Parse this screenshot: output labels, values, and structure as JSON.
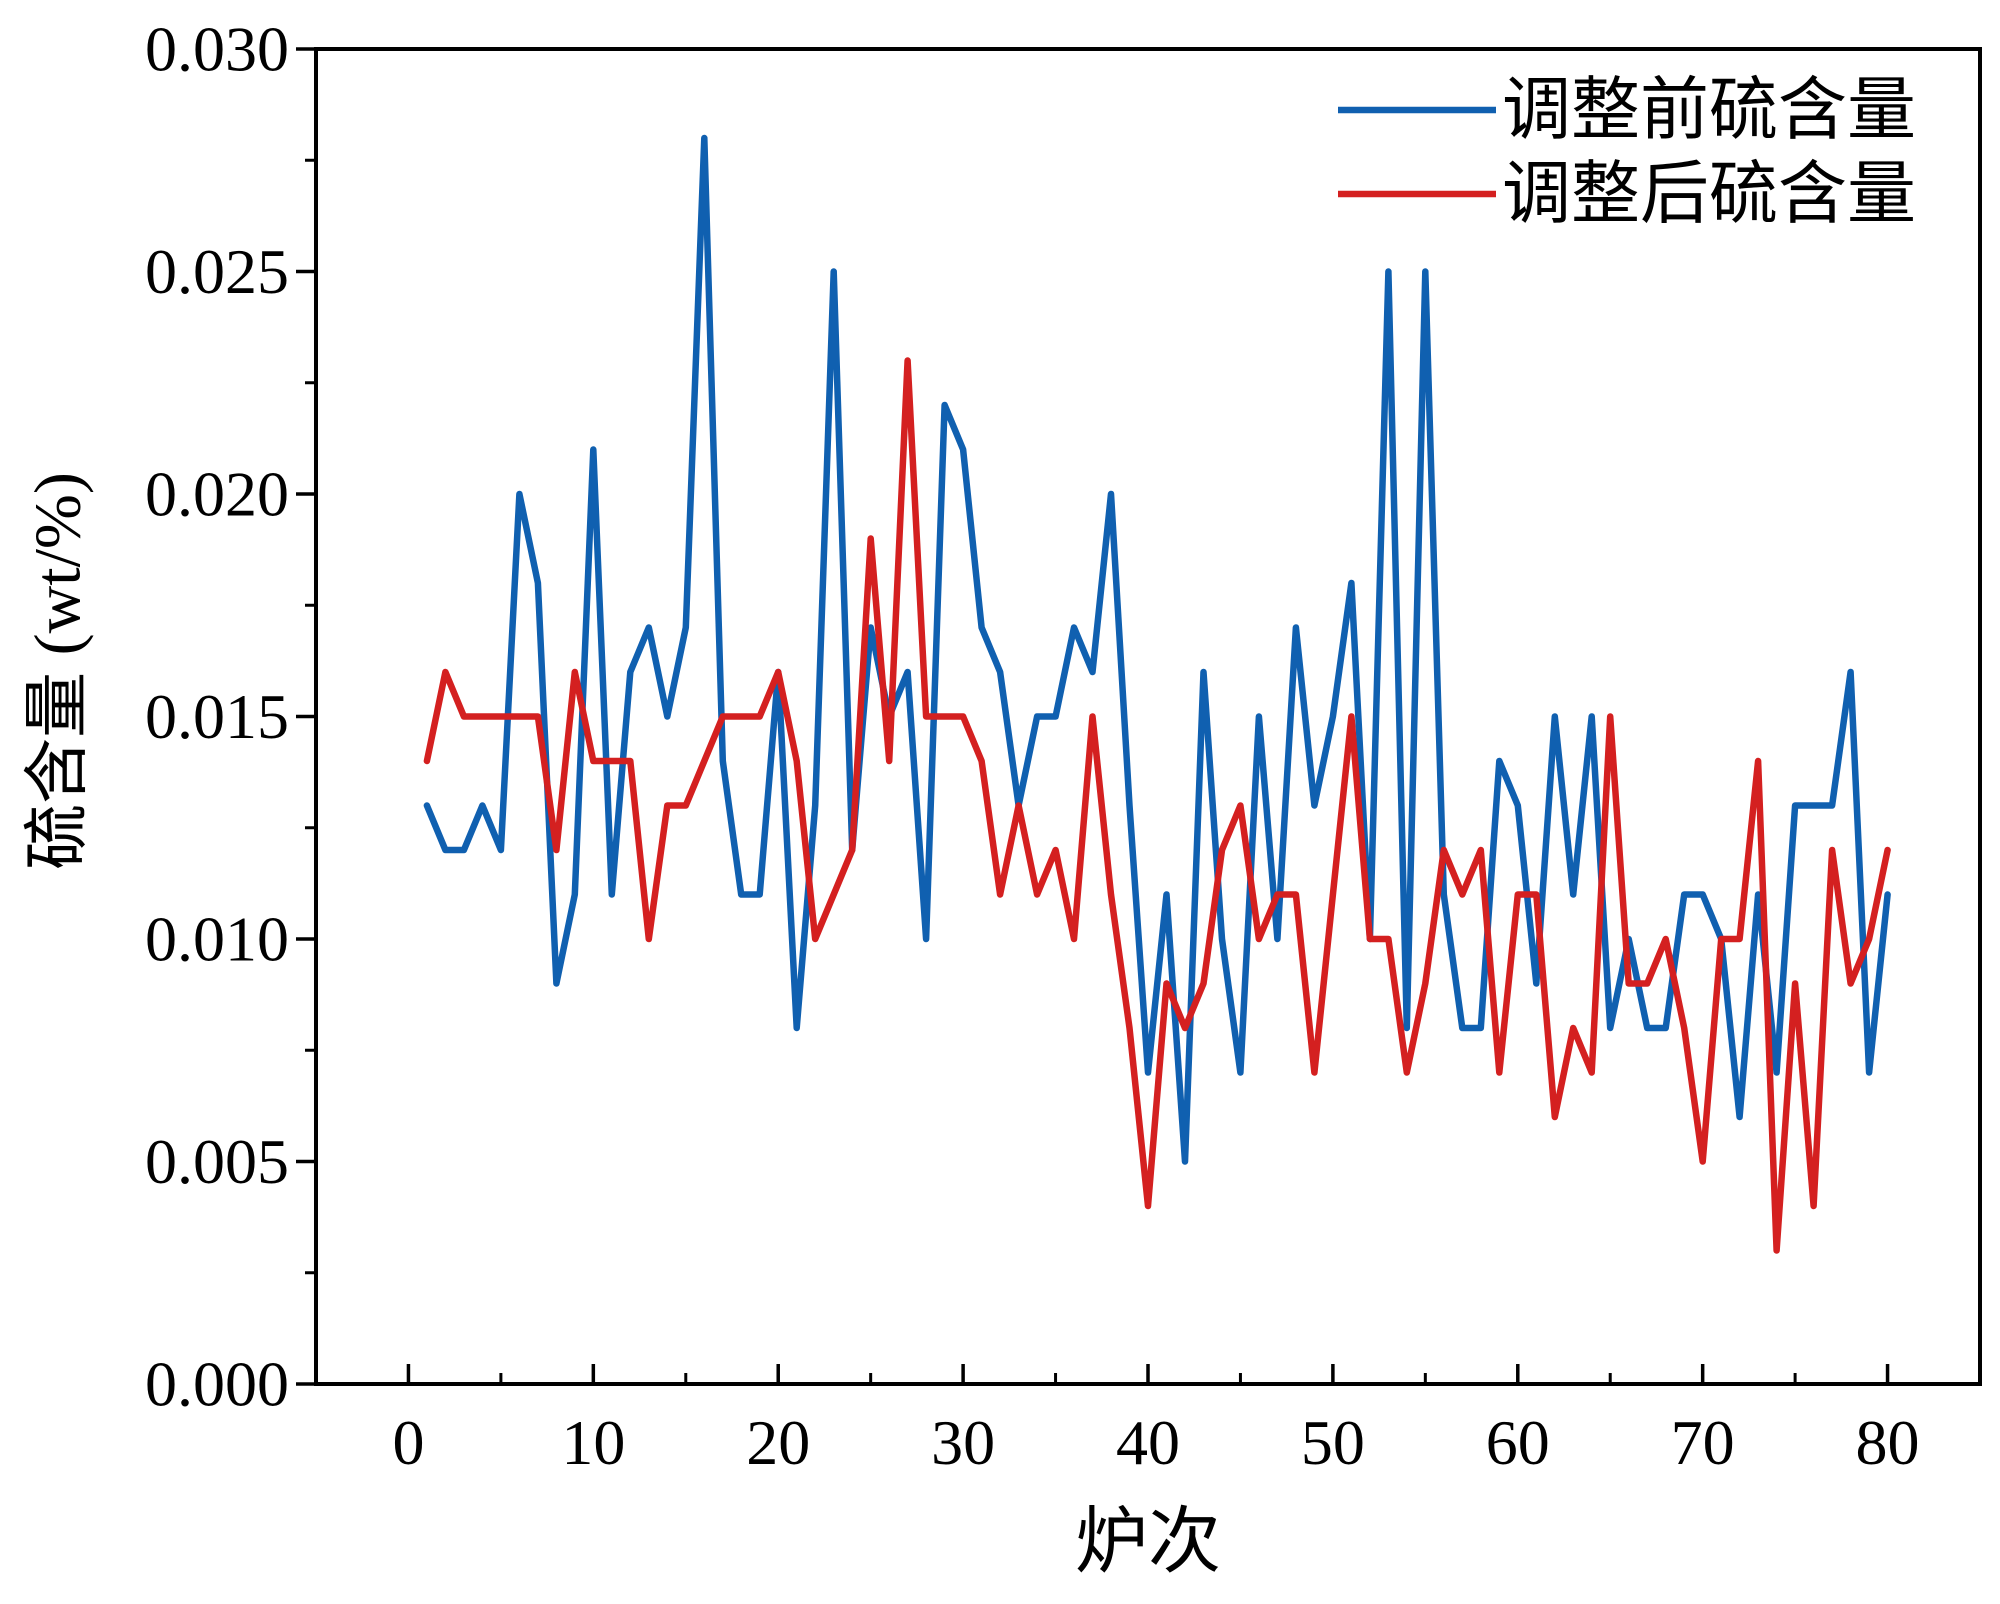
{
  "chart_data": {
    "type": "line",
    "xlabel": "炉次",
    "ylabel": "硫含量 (wt/%)",
    "xlim": [
      -5,
      85
    ],
    "ylim": [
      0,
      0.03
    ],
    "xticks": [
      0,
      10,
      20,
      30,
      40,
      50,
      60,
      70,
      80
    ],
    "yticks": [
      "0.000",
      "0.005",
      "0.010",
      "0.015",
      "0.020",
      "0.025",
      "0.030"
    ],
    "grid": false,
    "legend": "top-right",
    "x": [
      1,
      2,
      3,
      4,
      5,
      6,
      7,
      8,
      9,
      10,
      11,
      12,
      13,
      14,
      15,
      16,
      17,
      18,
      19,
      20,
      21,
      22,
      23,
      24,
      25,
      26,
      27,
      28,
      29,
      30,
      31,
      32,
      33,
      34,
      35,
      36,
      37,
      38,
      39,
      40,
      41,
      42,
      43,
      44,
      45,
      46,
      47,
      48,
      49,
      50,
      51,
      52,
      53,
      54,
      55,
      56,
      57,
      58,
      59,
      60,
      61,
      62,
      63,
      64,
      65,
      66,
      67,
      68,
      69,
      70,
      71,
      72,
      73,
      74,
      75,
      76,
      77,
      78,
      79,
      80
    ],
    "series": [
      {
        "name": "调整前硫含量",
        "color": "#1060b0",
        "values": [
          0.013,
          0.012,
          0.012,
          0.013,
          0.012,
          0.02,
          0.018,
          0.009,
          0.011,
          0.021,
          0.011,
          0.016,
          0.017,
          0.015,
          0.017,
          0.028,
          0.014,
          0.011,
          0.011,
          0.016,
          0.008,
          0.013,
          0.025,
          0.012,
          0.017,
          0.015,
          0.016,
          0.01,
          0.022,
          0.021,
          0.017,
          0.016,
          0.013,
          0.015,
          0.015,
          0.017,
          0.016,
          0.02,
          0.013,
          0.007,
          0.011,
          0.005,
          0.016,
          0.01,
          0.007,
          0.015,
          0.01,
          0.017,
          0.013,
          0.015,
          0.018,
          0.01,
          0.025,
          0.008,
          0.025,
          0.011,
          0.008,
          0.008,
          0.014,
          0.013,
          0.009,
          0.015,
          0.011,
          0.015,
          0.008,
          0.01,
          0.008,
          0.008,
          0.011,
          0.011,
          0.01,
          0.006,
          0.011,
          0.007,
          0.013,
          0.013,
          0.013,
          0.016,
          0.007,
          0.011
        ]
      },
      {
        "name": "调整后硫含量",
        "color": "#d42020",
        "values": [
          0.014,
          0.016,
          0.015,
          0.015,
          0.015,
          0.015,
          0.015,
          0.012,
          0.016,
          0.014,
          0.014,
          0.014,
          0.01,
          0.013,
          0.013,
          0.014,
          0.015,
          0.015,
          0.015,
          0.016,
          0.014,
          0.01,
          0.011,
          0.012,
          0.019,
          0.014,
          0.023,
          0.015,
          0.015,
          0.015,
          0.014,
          0.011,
          0.013,
          0.011,
          0.012,
          0.01,
          0.015,
          0.011,
          0.008,
          0.004,
          0.009,
          0.008,
          0.009,
          0.012,
          0.013,
          0.01,
          0.011,
          0.011,
          0.007,
          0.011,
          0.015,
          0.01,
          0.01,
          0.007,
          0.009,
          0.012,
          0.011,
          0.012,
          0.007,
          0.011,
          0.011,
          0.006,
          0.008,
          0.007,
          0.015,
          0.009,
          0.009,
          0.01,
          0.008,
          0.005,
          0.01,
          0.01,
          0.014,
          0.003,
          0.009,
          0.004,
          0.012,
          0.009,
          0.01,
          0.012
        ]
      }
    ]
  }
}
